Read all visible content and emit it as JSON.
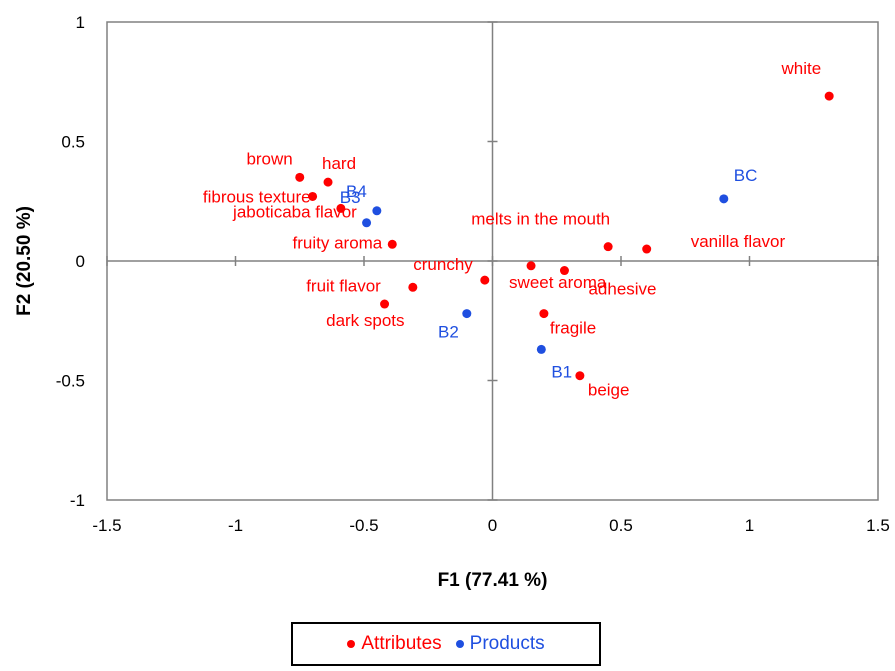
{
  "chart_data": {
    "type": "scatter",
    "xlabel": "F1 (77.41 %)",
    "ylabel": "F2 (20.50 %)",
    "xlim": [
      -1.5,
      1.5
    ],
    "ylim": [
      -1,
      1
    ],
    "xticks": [
      "-1.5",
      "-1",
      "-0.5",
      "0",
      "0.5",
      "1",
      "1.5"
    ],
    "yticks": [
      "-1",
      "-0.5",
      "0",
      "0.5",
      "1"
    ],
    "grid": false,
    "legend_position": "bottom",
    "series": [
      {
        "name": "Attributes",
        "color": "#ff0000",
        "points": [
          {
            "label": "white",
            "x": 1.31,
            "y": 0.69
          },
          {
            "label": "brown",
            "x": -0.75,
            "y": 0.35
          },
          {
            "label": "hard",
            "x": -0.64,
            "y": 0.33
          },
          {
            "label": "fibrous texture",
            "x": -0.7,
            "y": 0.27
          },
          {
            "label": "jaboticaba flavor",
            "x": -0.59,
            "y": 0.22
          },
          {
            "label": "fruity aroma",
            "x": -0.39,
            "y": 0.07
          },
          {
            "label": "melts in the mouth",
            "x": 0.45,
            "y": 0.06
          },
          {
            "label": "vanilla flavor",
            "x": 0.6,
            "y": 0.05
          },
          {
            "label": "crunchy",
            "x": -0.03,
            "y": -0.08
          },
          {
            "label": "fruit flavor",
            "x": -0.31,
            "y": -0.11
          },
          {
            "label": "sweet aroma",
            "x": 0.15,
            "y": -0.02
          },
          {
            "label": "adhesive",
            "x": 0.28,
            "y": -0.04
          },
          {
            "label": "dark spots",
            "x": -0.42,
            "y": -0.18
          },
          {
            "label": "fragile",
            "x": 0.2,
            "y": -0.22
          },
          {
            "label": "beige",
            "x": 0.34,
            "y": -0.48
          }
        ]
      },
      {
        "name": "Products",
        "color": "#1f4fe0",
        "points": [
          {
            "label": "BC",
            "x": 0.9,
            "y": 0.26
          },
          {
            "label": "B4",
            "x": -0.45,
            "y": 0.21
          },
          {
            "label": "B3",
            "x": -0.49,
            "y": 0.16
          },
          {
            "label": "B2",
            "x": -0.1,
            "y": -0.22
          },
          {
            "label": "B1",
            "x": 0.19,
            "y": -0.37
          }
        ]
      }
    ]
  }
}
